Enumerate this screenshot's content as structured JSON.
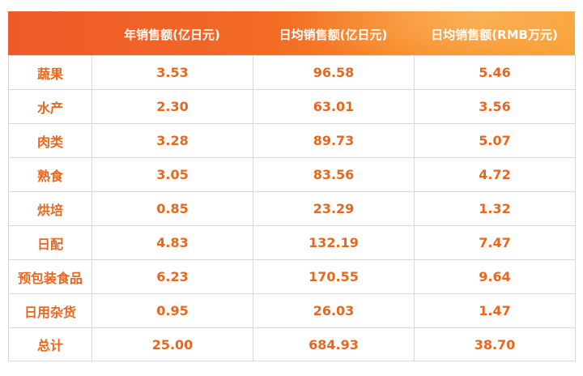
{
  "table": {
    "headers": [
      "",
      "年销售额(亿日元)",
      "日均销售额(亿日元)",
      "日均销售额(RMB万元)"
    ],
    "rows": [
      {
        "category": "蔬果",
        "annual": "3.53",
        "daily_jpy": "96.58",
        "daily_rmb": "5.46"
      },
      {
        "category": "水产",
        "annual": "2.30",
        "daily_jpy": "63.01",
        "daily_rmb": "3.56"
      },
      {
        "category": "肉类",
        "annual": "3.28",
        "daily_jpy": "89.73",
        "daily_rmb": "5.07"
      },
      {
        "category": "熟食",
        "annual": "3.05",
        "daily_jpy": "83.56",
        "daily_rmb": "4.72"
      },
      {
        "category": "烘培",
        "annual": "0.85",
        "daily_jpy": "23.29",
        "daily_rmb": "1.32"
      },
      {
        "category": "日配",
        "annual": "4.83",
        "daily_jpy": "132.19",
        "daily_rmb": "7.47"
      },
      {
        "category": "预包装食品",
        "annual": "6.23",
        "daily_jpy": "170.55",
        "daily_rmb": "9.64"
      },
      {
        "category": "日用杂货",
        "annual": "0.95",
        "daily_jpy": "26.03",
        "daily_rmb": "1.47"
      },
      {
        "category": "总计",
        "annual": "25.00",
        "daily_jpy": "684.93",
        "daily_rmb": "38.70"
      }
    ]
  },
  "colors": {
    "header_start": "#ef5a2a",
    "header_end": "#f8a035",
    "cell_text": "#e8671e",
    "grid_line": "#d8d8d8"
  }
}
